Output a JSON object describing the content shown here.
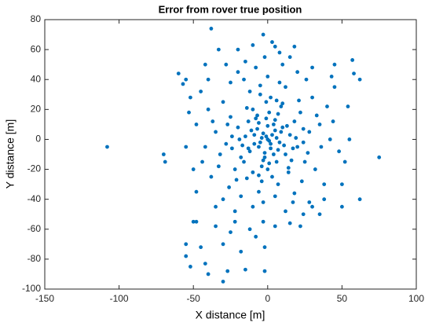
{
  "chart_data": {
    "type": "scatter",
    "title": "Error from rover true position",
    "x_label": "X distance [m]",
    "y_label": "Y distance [m]",
    "color": "#0072bd",
    "grid": false,
    "xlim": [
      -150,
      100
    ],
    "xticks": [
      -150,
      -100,
      -50,
      0,
      50,
      100
    ],
    "ylim": [
      -100,
      80
    ],
    "yticks": [
      -100,
      -80,
      -60,
      -40,
      -20,
      0,
      20,
      40,
      60,
      80
    ],
    "x": [
      -108,
      75,
      -38,
      -3,
      3,
      5,
      8,
      -33,
      57,
      58,
      62,
      -60,
      -57,
      -55,
      -52,
      -70,
      -69,
      -50,
      -48,
      -22,
      -55,
      -55,
      -52,
      -42,
      -40,
      -30,
      -27,
      -15,
      -2,
      -2,
      62,
      50,
      35,
      30,
      -45,
      0,
      2,
      -3,
      5,
      -6,
      8,
      -9,
      4,
      -2,
      10,
      -12,
      12,
      -8,
      1,
      -15,
      15,
      -4,
      6,
      -18,
      18,
      -10,
      9,
      -20,
      20,
      -1,
      3,
      -22,
      22,
      -14,
      14,
      -25,
      25,
      -5,
      7,
      -28,
      28,
      -30,
      30,
      -12,
      12,
      -32,
      32,
      -6,
      8,
      -35,
      35,
      -18,
      18,
      -38,
      38,
      -25,
      26,
      -40,
      40,
      0,
      -3,
      -42,
      42,
      -20,
      20,
      -8,
      10,
      -45,
      45,
      -2,
      -10,
      12,
      -30,
      28,
      -48,
      48,
      -15,
      15,
      -35,
      38,
      -1,
      1,
      3,
      -4,
      2,
      -5,
      6,
      -7,
      7,
      0,
      -2,
      9,
      -9,
      4,
      -6,
      11,
      -11,
      5,
      -3,
      13,
      -13,
      -7,
      7,
      -16,
      16,
      0,
      -19,
      19,
      -10,
      10,
      -24,
      24,
      2,
      -4,
      -27,
      27,
      -14,
      14,
      -21,
      21,
      -33,
      33,
      -26,
      23,
      -37,
      36,
      -5,
      5,
      -44,
      44,
      -16,
      17,
      -22,
      24,
      -40,
      43,
      -28,
      30,
      -50,
      52,
      -3,
      5,
      -12,
      15,
      -8,
      -25,
      22,
      -35,
      -18,
      -30,
      -20,
      18,
      -10,
      -55,
      55,
      -53,
      54,
      -48,
      50,
      -42,
      45,
      -24,
      24,
      -1,
      1,
      -17,
      17,
      -6,
      6,
      -13
    ],
    "values": [
      -5,
      -12,
      74,
      70,
      65,
      62,
      58,
      60,
      53,
      44,
      40,
      44,
      37,
      40,
      28,
      -10,
      -15,
      -55,
      -55,
      -55,
      -70,
      -78,
      -85,
      -83,
      -90,
      -95,
      -88,
      -87,
      -88,
      -72,
      -40,
      -45,
      -50,
      -45,
      -72,
      0,
      -3,
      4,
      6,
      -5,
      -2,
      3,
      10,
      -12,
      8,
      -8,
      -10,
      14,
      18,
      2,
      3,
      -18,
      -15,
      -12,
      12,
      20,
      22,
      8,
      -5,
      25,
      -25,
      -20,
      18,
      -26,
      -22,
      15,
      -15,
      30,
      -30,
      -3,
      5,
      25,
      28,
      32,
      35,
      -10,
      -20,
      -35,
      38,
      5,
      10,
      -38,
      -36,
      -25,
      -30,
      38,
      40,
      20,
      22,
      42,
      -42,
      -5,
      0,
      45,
      45,
      48,
      50,
      32,
      35,
      55,
      -45,
      -48,
      -40,
      -42,
      10,
      -8,
      52,
      55,
      -45,
      -40,
      2,
      -1,
      3,
      1,
      -6,
      -2,
      1,
      7,
      -7,
      9,
      -9,
      5,
      -3,
      -10,
      11,
      -4,
      6,
      13,
      -14,
      9,
      -6,
      16,
      17,
      -15,
      -14,
      -20,
      0,
      1,
      -22,
      24,
      -6,
      7,
      28,
      -28,
      10,
      -9,
      21,
      -19,
      -27,
      26,
      -18,
      16,
      -32,
      -28,
      12,
      -5,
      36,
      -38,
      -15,
      12,
      40,
      -42,
      -48,
      -50,
      40,
      42,
      50,
      48,
      -20,
      -15,
      -55,
      -58,
      -60,
      -56,
      -65,
      -62,
      -58,
      -58,
      -75,
      -70,
      60,
      62,
      63,
      -5,
      0,
      18,
      22,
      -35,
      -30,
      50,
      50,
      2,
      -2,
      14,
      -16,
      -4,
      -6,
      -24,
      26,
      12
    ]
  }
}
